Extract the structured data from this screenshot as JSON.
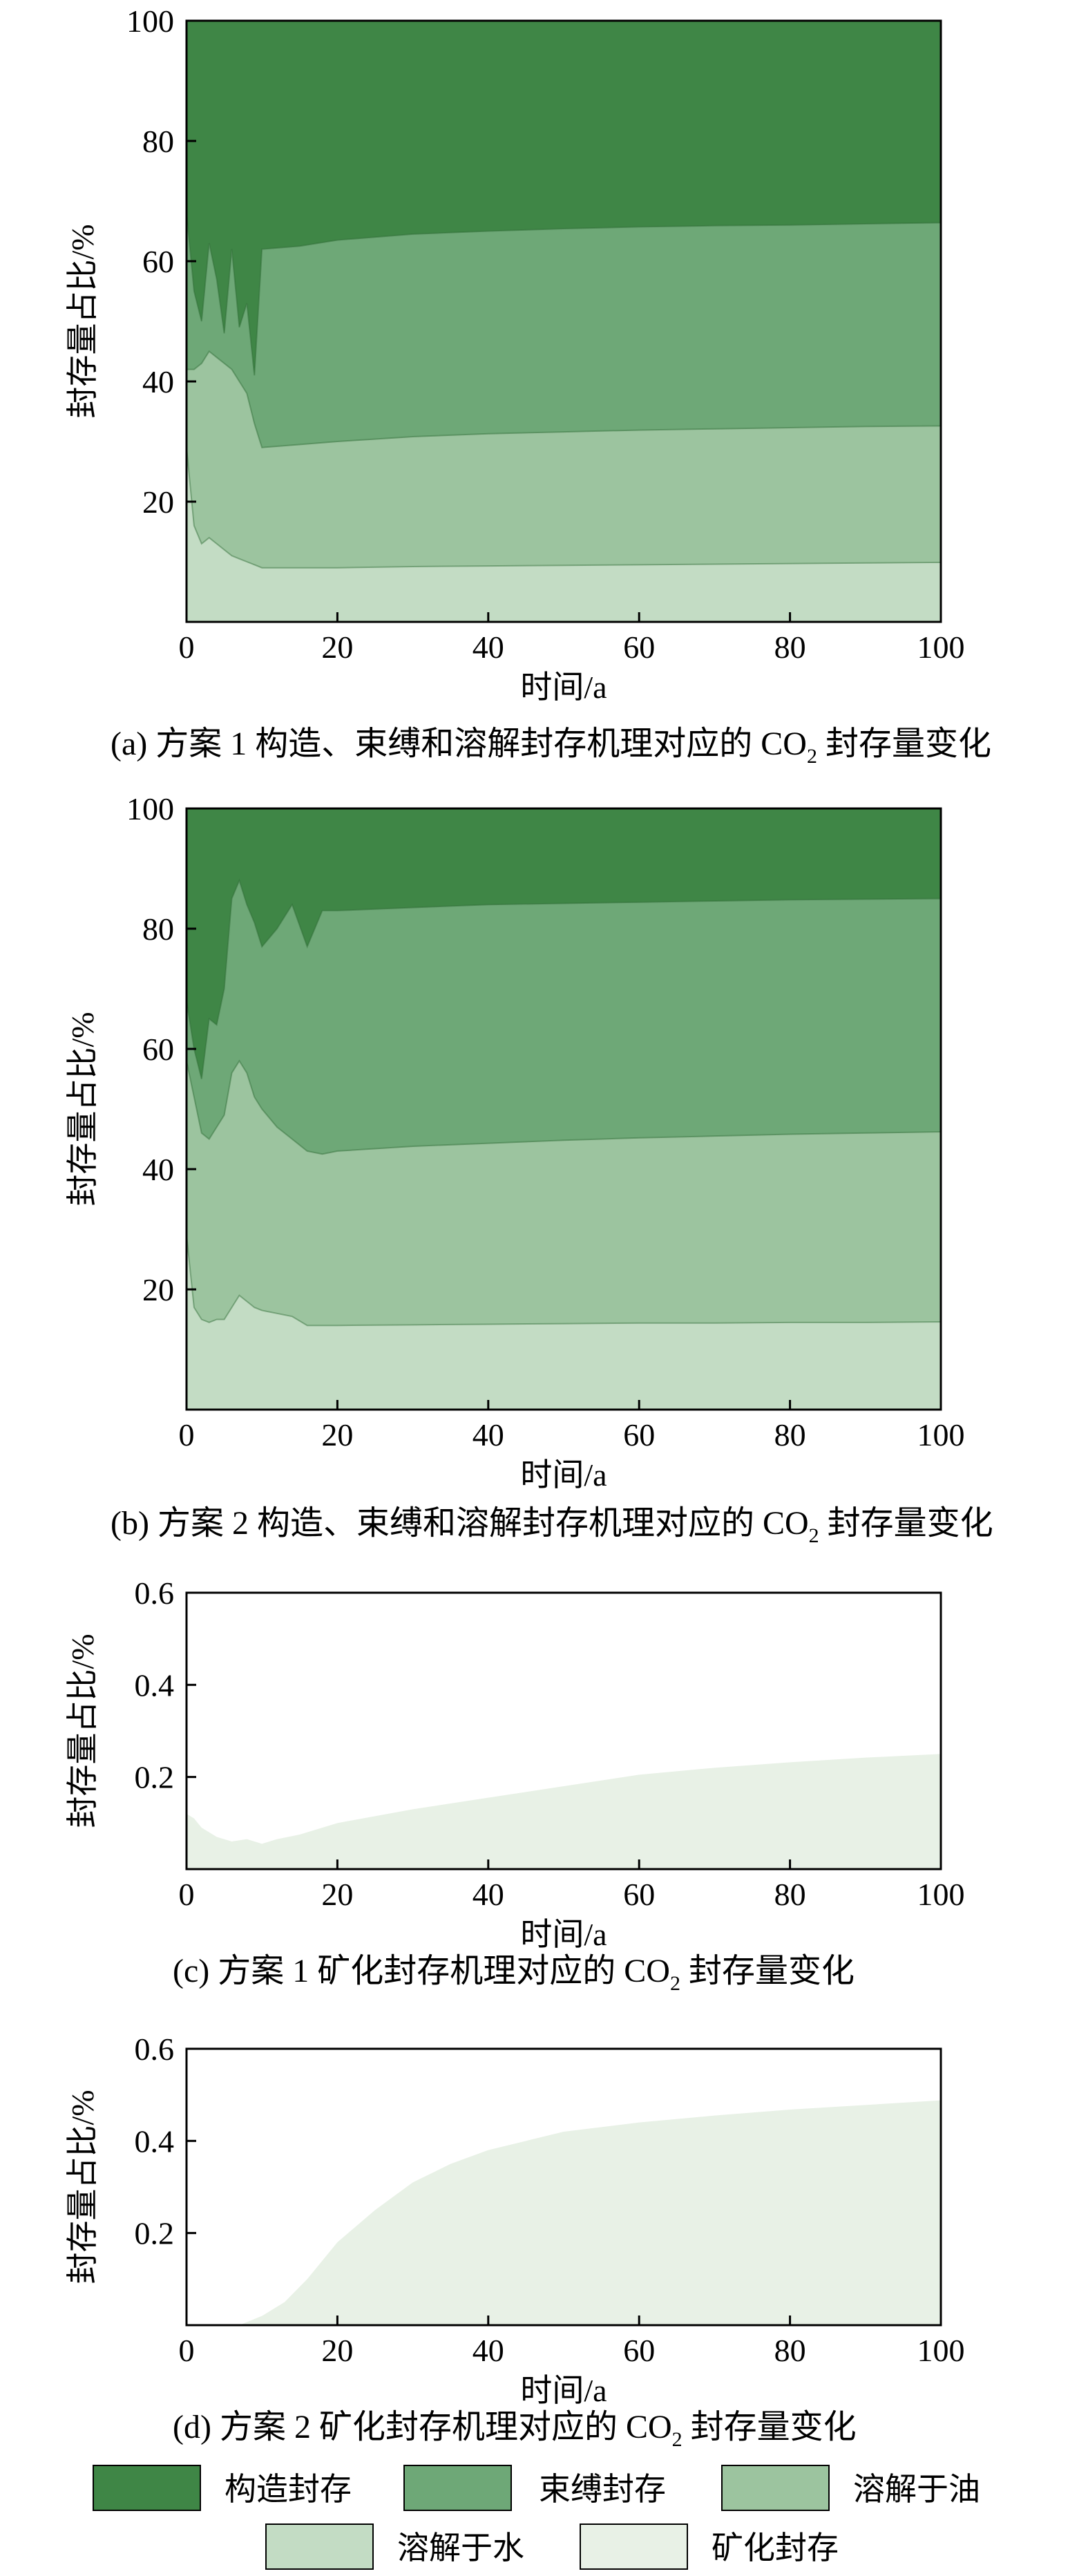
{
  "figure": {
    "captions": [
      {
        "prefix": "(a) 方案 1 构造、束缚和溶解封存机理对应的 CO",
        "sub": "2",
        "suffix": " 封存量变化"
      },
      {
        "prefix": "(b) 方案 2 构造、束缚和溶解封存机理对应的 CO",
        "sub": "2",
        "suffix": " 封存量变化"
      },
      {
        "prefix": "(c) 方案 1 矿化封存机理对应的 CO",
        "sub": "2",
        "suffix": " 封存量变化"
      },
      {
        "prefix": "(d) 方案 2 矿化封存机理对应的 CO",
        "sub": "2",
        "suffix": " 封存量变化"
      }
    ],
    "legend": [
      {
        "label": "构造封存",
        "color": "#3f8646"
      },
      {
        "label": "束缚封存",
        "color": "#6ea877"
      },
      {
        "label": "溶解于油",
        "color": "#9cc49f"
      },
      {
        "label": "溶解于水",
        "color": "#c3dcc4"
      },
      {
        "label": "矿化封存",
        "color": "#e8f1e6"
      }
    ]
  },
  "chart_data": [
    {
      "type": "area",
      "stacked": true,
      "xlabel": "时间/a",
      "ylabel": "封存量占比/%",
      "xlim": [
        0,
        100
      ],
      "ylim": [
        0,
        100
      ],
      "xticks": [
        "0",
        "20",
        "40",
        "60",
        "80",
        "100"
      ],
      "yticks": [
        "20",
        "40",
        "60",
        "80",
        "100"
      ],
      "x": [
        0,
        1,
        2,
        3,
        4,
        5,
        6,
        7,
        8,
        9,
        10,
        15,
        20,
        30,
        40,
        50,
        60,
        70,
        80,
        90,
        100
      ],
      "boundaries": [
        {
          "name": "溶解于水",
          "color": "#c3dcc4",
          "top": [
            29,
            16,
            13,
            14,
            13,
            12,
            11,
            10.5,
            10,
            9.5,
            9,
            9,
            9,
            9.2,
            9.3,
            9.4,
            9.5,
            9.6,
            9.7,
            9.8,
            9.9
          ]
        },
        {
          "name": "溶解于油",
          "color": "#9cc49f",
          "top": [
            42,
            42,
            43,
            45,
            44,
            43,
            42,
            40,
            38,
            33,
            29,
            29.5,
            30,
            30.8,
            31.3,
            31.6,
            31.9,
            32.1,
            32.3,
            32.5,
            32.6
          ]
        },
        {
          "name": "束缚封存",
          "color": "#6ea877",
          "top": [
            68,
            55,
            50,
            63,
            57,
            48,
            62,
            49,
            53,
            41,
            62,
            62.5,
            63.5,
            64.5,
            65,
            65.4,
            65.7,
            65.9,
            66,
            66.2,
            66.4
          ]
        },
        {
          "name": "构造封存",
          "color": "#3f8646",
          "top": [
            100,
            100,
            100,
            100,
            100,
            100,
            100,
            100,
            100,
            100,
            100,
            100,
            100,
            100,
            100,
            100,
            100,
            100,
            100,
            100,
            100
          ]
        }
      ]
    },
    {
      "type": "area",
      "stacked": true,
      "xlabel": "时间/a",
      "ylabel": "封存量占比/%",
      "xlim": [
        0,
        100
      ],
      "ylim": [
        0,
        100
      ],
      "xticks": [
        "0",
        "20",
        "40",
        "60",
        "80",
        "100"
      ],
      "yticks": [
        "20",
        "40",
        "60",
        "80",
        "100"
      ],
      "x": [
        0,
        1,
        2,
        3,
        4,
        5,
        6,
        7,
        8,
        9,
        10,
        12,
        14,
        16,
        18,
        20,
        30,
        40,
        50,
        60,
        70,
        80,
        90,
        100
      ],
      "boundaries": [
        {
          "name": "溶解于水",
          "color": "#c3dcc4",
          "top": [
            29,
            17,
            15,
            14.5,
            15,
            15,
            17,
            19,
            18,
            17,
            16.5,
            16,
            15.5,
            14,
            14,
            14,
            14.1,
            14.2,
            14.3,
            14.4,
            14.4,
            14.5,
            14.5,
            14.6
          ]
        },
        {
          "name": "溶解于油",
          "color": "#9cc49f",
          "top": [
            58,
            52,
            46,
            45,
            47,
            49,
            56,
            58,
            56,
            52,
            50,
            47,
            45,
            43,
            42.5,
            43,
            43.8,
            44.3,
            44.8,
            45.2,
            45.5,
            45.8,
            46,
            46.2
          ]
        },
        {
          "name": "束缚封存",
          "color": "#6ea877",
          "top": [
            68,
            60,
            55,
            65,
            64,
            70,
            85,
            88,
            84,
            81,
            77,
            80,
            84,
            77,
            83,
            83,
            83.5,
            84,
            84.2,
            84.4,
            84.6,
            84.8,
            84.9,
            85
          ]
        },
        {
          "name": "构造封存",
          "color": "#3f8646",
          "top": [
            100,
            100,
            100,
            100,
            100,
            100,
            100,
            100,
            100,
            100,
            100,
            100,
            100,
            100,
            100,
            100,
            100,
            100,
            100,
            100,
            100,
            100,
            100,
            100
          ]
        }
      ]
    },
    {
      "type": "area",
      "xlabel": "时间/a",
      "ylabel": "封存量占比/%",
      "xlim": [
        0,
        100
      ],
      "ylim": [
        0,
        0.6
      ],
      "xticks": [
        "0",
        "20",
        "40",
        "60",
        "80",
        "100"
      ],
      "yticks": [
        "0.2",
        "0.4",
        "0.6"
      ],
      "x": [
        0,
        1,
        2,
        4,
        6,
        8,
        10,
        12,
        15,
        20,
        30,
        40,
        50,
        60,
        70,
        80,
        90,
        100
      ],
      "series": [
        {
          "name": "矿化封存",
          "color": "#e8f1e6",
          "values": [
            0.12,
            0.11,
            0.09,
            0.07,
            0.06,
            0.065,
            0.055,
            0.065,
            0.075,
            0.1,
            0.13,
            0.155,
            0.18,
            0.205,
            0.22,
            0.232,
            0.242,
            0.25
          ]
        }
      ]
    },
    {
      "type": "area",
      "xlabel": "时间/a",
      "ylabel": "封存量占比/%",
      "xlim": [
        0,
        100
      ],
      "ylim": [
        0,
        0.6
      ],
      "xticks": [
        "0",
        "20",
        "40",
        "60",
        "80",
        "100"
      ],
      "yticks": [
        "0.2",
        "0.4",
        "0.6"
      ],
      "x": [
        0,
        7,
        10,
        13,
        16,
        20,
        25,
        30,
        35,
        40,
        50,
        60,
        70,
        80,
        90,
        100
      ],
      "series": [
        {
          "name": "矿化封存",
          "color": "#e8f1e6",
          "values": [
            0,
            0,
            0.02,
            0.05,
            0.1,
            0.18,
            0.25,
            0.31,
            0.35,
            0.38,
            0.42,
            0.44,
            0.455,
            0.468,
            0.478,
            0.488
          ]
        }
      ]
    }
  ]
}
